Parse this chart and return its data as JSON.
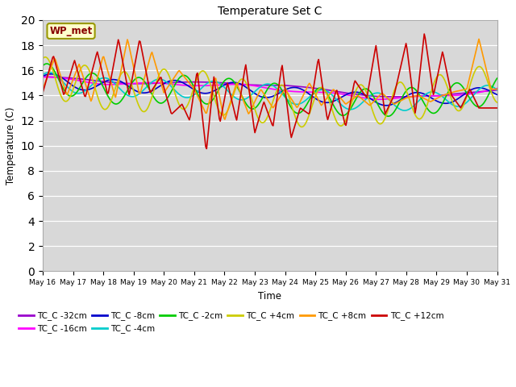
{
  "title": "Temperature Set C",
  "xlabel": "Time",
  "ylabel": "Temperature (C)",
  "ylim": [
    0,
    20
  ],
  "xlim": [
    0,
    15
  ],
  "plot_bg_color": "#d8d8d8",
  "fig_bg_color": "#ffffff",
  "legend_label": "WP_met",
  "series": [
    {
      "label": "TC_C -32cm",
      "color": "#9900cc"
    },
    {
      "label": "TC_C -16cm",
      "color": "#ff00ff"
    },
    {
      "label": "TC_C -8cm",
      "color": "#0000cc"
    },
    {
      "label": "TC_C -4cm",
      "color": "#00cccc"
    },
    {
      "label": "TC_C -2cm",
      "color": "#00cc00"
    },
    {
      "label": "TC_C +4cm",
      "color": "#cccc00"
    },
    {
      "label": "TC_C +8cm",
      "color": "#ff9900"
    },
    {
      "label": "TC_C +12cm",
      "color": "#cc0000"
    }
  ],
  "x_tick_labels": [
    "May 16",
    "May 17",
    "May 18",
    "May 19",
    "May 20",
    "May 21",
    "May 22",
    "May 23",
    "May 24",
    "May 25",
    "May 26",
    "May 27",
    "May 28",
    "May 29",
    "May 30",
    "May 31"
  ],
  "x_ticks": [
    0,
    1,
    2,
    3,
    4,
    5,
    6,
    7,
    8,
    9,
    10,
    11,
    12,
    13,
    14,
    15
  ]
}
